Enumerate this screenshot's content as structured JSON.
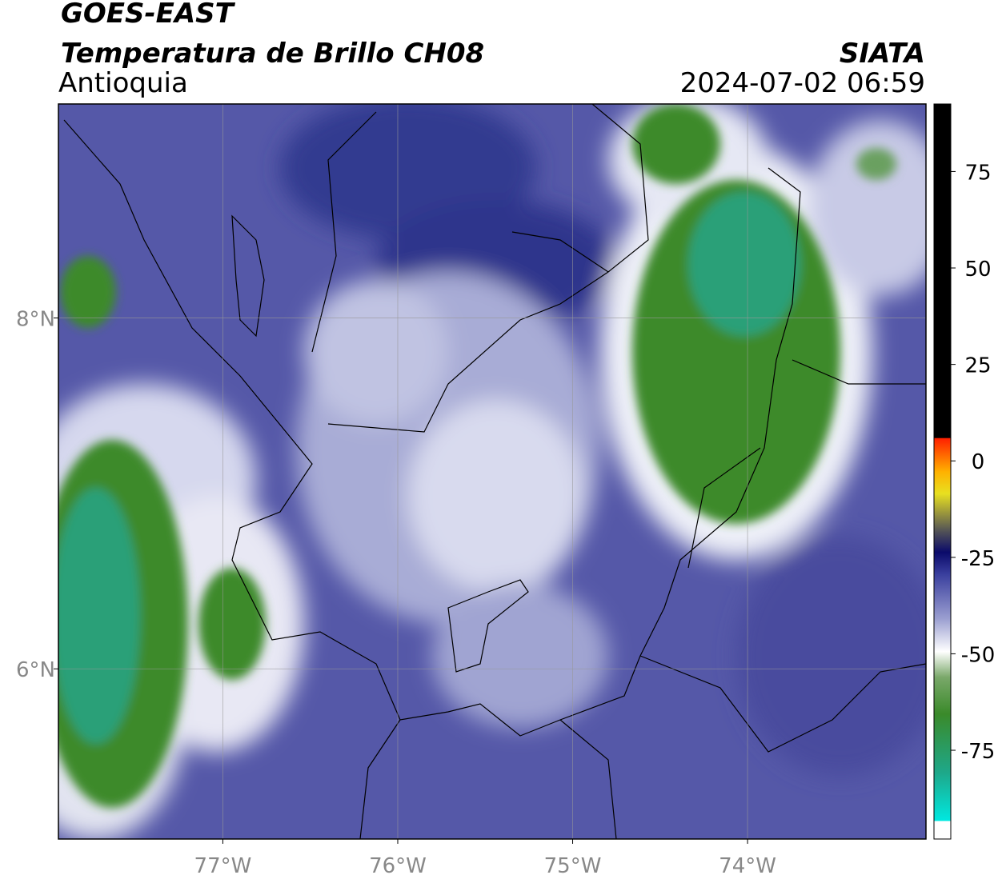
{
  "header": {
    "title": "GOES-EAST",
    "subtitle": "Temperatura de Brillo CH08",
    "region": "Antioquia",
    "source": "SIATA",
    "datetime": "2024-07-02 06:59"
  },
  "map": {
    "xlim": [
      -77.94,
      -72.98
    ],
    "ylim": [
      5.03,
      9.22
    ],
    "xticks": [
      {
        "value": -77,
        "label": "77°W"
      },
      {
        "value": -76,
        "label": "76°W"
      },
      {
        "value": -75,
        "label": "75°W"
      },
      {
        "value": -74,
        "label": "74°W"
      }
    ],
    "yticks": [
      {
        "value": 8,
        "label": "8°N"
      },
      {
        "value": 6,
        "label": "6°N"
      }
    ]
  },
  "colorbar": {
    "lim": [
      -98,
      92.5
    ],
    "ticks": [
      75,
      50,
      25,
      0,
      -25,
      -50,
      -75
    ]
  }
}
